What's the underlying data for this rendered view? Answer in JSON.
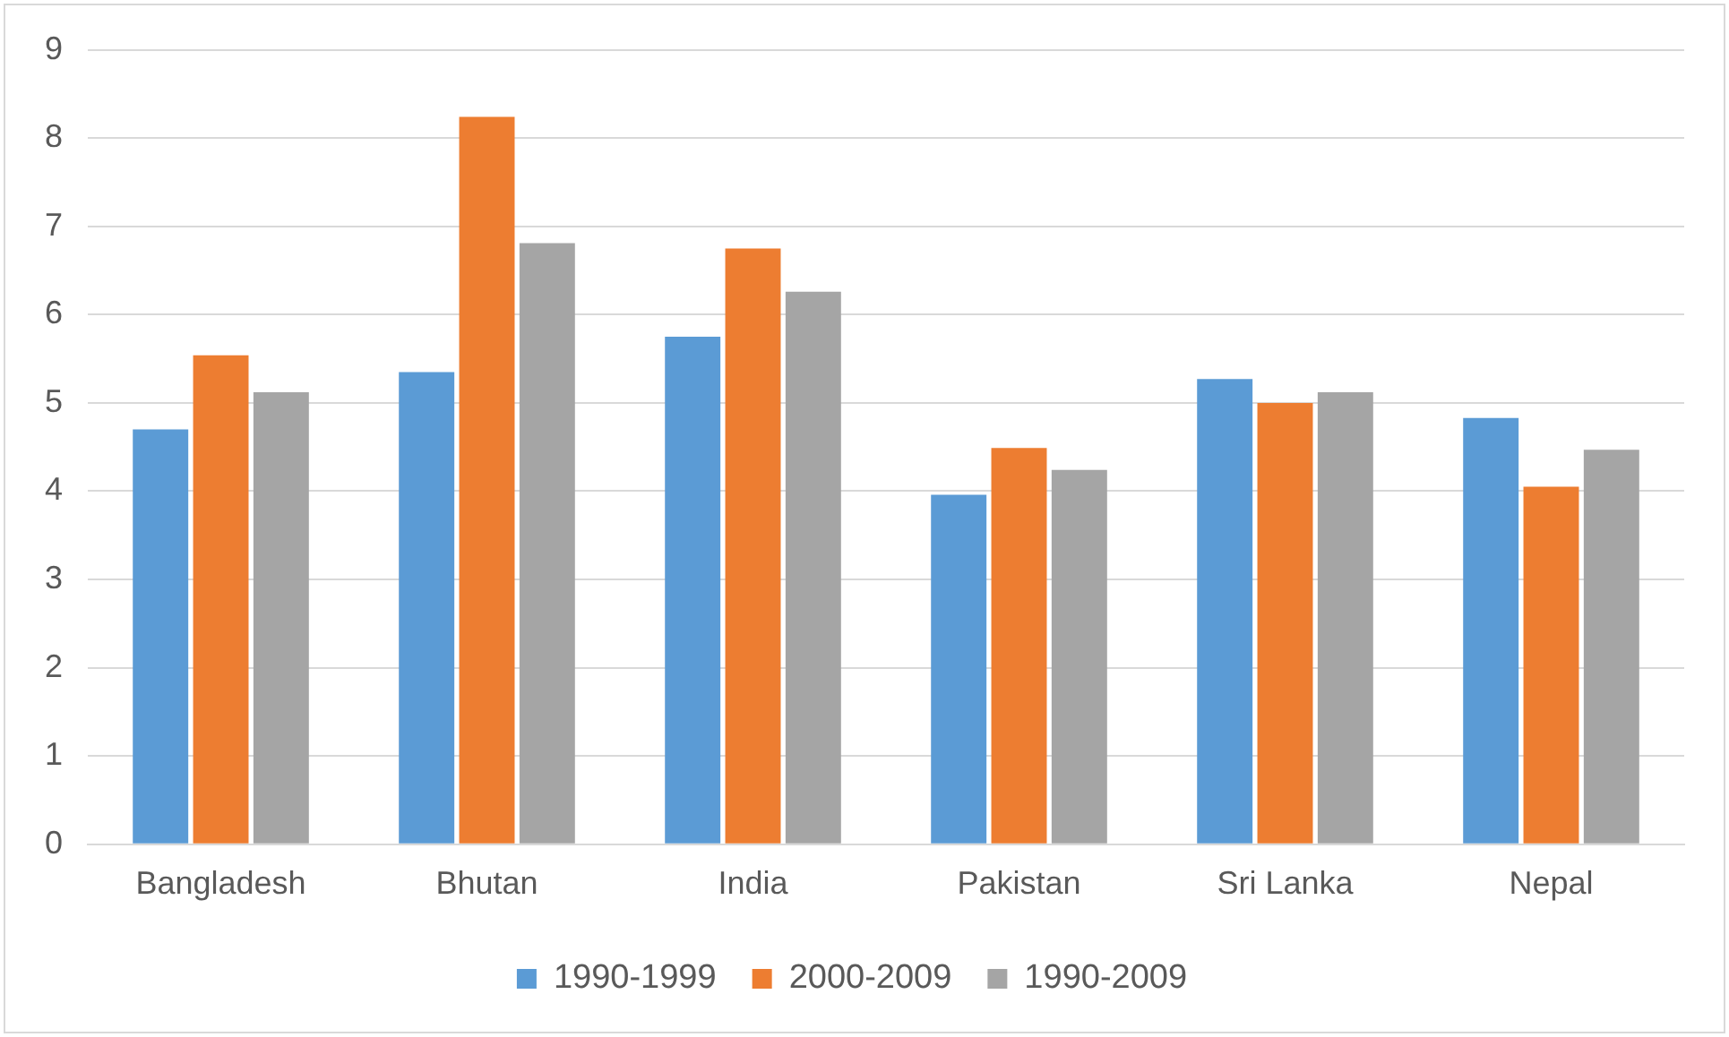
{
  "chart_data": {
    "type": "bar",
    "categories": [
      "Bangladesh",
      "Bhutan",
      "India",
      "Pakistan",
      "Sri Lanka",
      "Nepal"
    ],
    "series": [
      {
        "name": "1990-1999",
        "color": "#5b9bd5",
        "values": [
          4.7,
          5.35,
          5.75,
          3.96,
          5.27,
          4.83
        ]
      },
      {
        "name": "2000-2009",
        "color": "#ed7d31",
        "values": [
          5.54,
          8.24,
          6.75,
          4.49,
          5.0,
          4.05
        ]
      },
      {
        "name": "1990-2009",
        "color": "#a5a5a5",
        "values": [
          5.12,
          6.81,
          6.26,
          4.24,
          5.12,
          4.47
        ]
      }
    ],
    "ylim": [
      0,
      9
    ],
    "yticks": [
      0,
      1,
      2,
      3,
      4,
      5,
      6,
      7,
      8,
      9
    ],
    "grid": "y",
    "legend": "bottom"
  }
}
